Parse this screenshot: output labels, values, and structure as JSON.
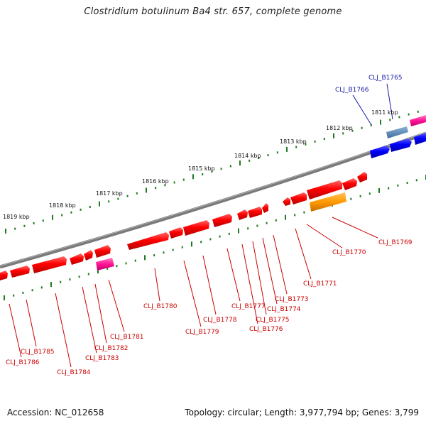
{
  "title": "Clostridium botulinum Ba4 str. 657, complete genome",
  "footer": {
    "accession": "Accession: NC_012658",
    "summary": "Topology: circular; Length: 3,977,794 bp; Genes: 3,799"
  },
  "colors": {
    "backbone": "#7a7a7a",
    "forward_label": "#1a1aa8",
    "reverse_label": "#cc0000",
    "tick": "#1f7a1f"
  },
  "kbp_labels": [
    "1811 kbp",
    "1812 kbp",
    "1813 kbp",
    "1814 kbp",
    "1815 kbp",
    "1816 kbp",
    "1817 kbp",
    "1818 kbp",
    "1819 kbp"
  ],
  "forward_genes": [
    "CLJ_B1765",
    "CLJ_B1766"
  ],
  "reverse_genes": [
    "CLJ_B1769",
    "CLJ_B1770",
    "CLJ_B1771",
    "CLJ_B1773",
    "CLJ_B1774",
    "CLJ_B1775",
    "CLJ_B1776",
    "CLJ_B1777",
    "CLJ_B1778",
    "CLJ_B1779",
    "CLJ_B1780",
    "CLJ_B1781",
    "CLJ_B1782",
    "CLJ_B1783",
    "CLJ_B1784",
    "CLJ_B1785",
    "CLJ_B1786"
  ]
}
